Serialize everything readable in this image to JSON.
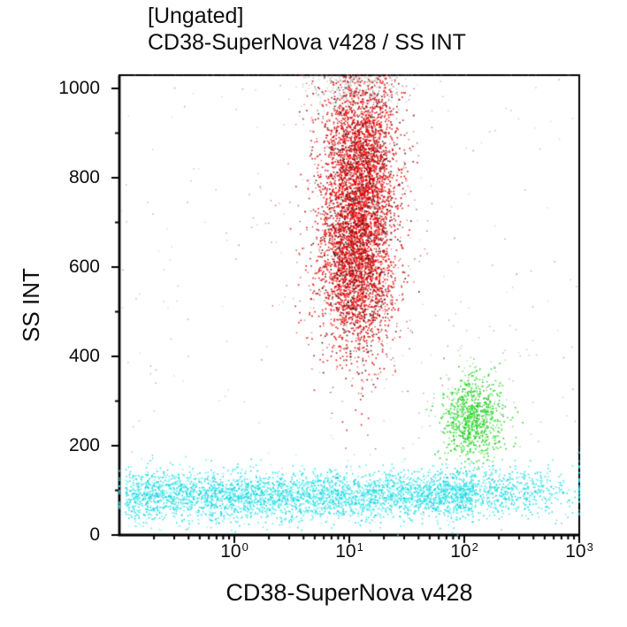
{
  "chart_data": {
    "type": "scatter",
    "subtype": "flow-cytometry-dot-plot",
    "gate": "[Ungated]",
    "title": "CD38-SuperNova v428 / SS INT",
    "xlabel": "CD38-SuperNova v428",
    "ylabel": "SS INT",
    "frame_color": "#000000",
    "background": "#ffffff",
    "x_axis": {
      "scale": "log10",
      "range": [
        0.1,
        1000
      ],
      "ticks": [
        {
          "base": "10",
          "exp": "0",
          "value": 1
        },
        {
          "base": "10",
          "exp": "1",
          "value": 10
        },
        {
          "base": "10",
          "exp": "2",
          "value": 100
        },
        {
          "base": "10",
          "exp": "3",
          "value": 1000
        }
      ]
    },
    "y_axis": {
      "scale": "linear",
      "range": [
        0,
        1000
      ],
      "minor_step": 100,
      "ticks": [
        {
          "label": "0",
          "value": 0
        },
        {
          "label": "200",
          "value": 200
        },
        {
          "label": "400",
          "value": 400
        },
        {
          "label": "600",
          "value": 600
        },
        {
          "label": "800",
          "value": 800
        },
        {
          "label": "1000",
          "value": 1000
        }
      ]
    },
    "populations": [
      {
        "name": "debris-scatter-gray",
        "count": 230,
        "x": {
          "dist": "uniform_log",
          "lo": -1.0,
          "hi": 3.0
        },
        "y": {
          "dist": "uniform",
          "lo": 5,
          "hi": 1020
        },
        "colors": [
          "#bdbdbd",
          "#ababab",
          "#cfcfcf",
          "#919191"
        ],
        "size": 1.5,
        "alpha": 0.75
      },
      {
        "name": "top-edge-smudge-gray",
        "count": 520,
        "x": {
          "dist": "lognormal",
          "mu": 1.07,
          "sigma": 0.21
        },
        "y": {
          "dist": "normal",
          "mu": 1025,
          "sigma": 42
        },
        "colors": [
          "#b7b7b7",
          "#c6c6c6",
          "#a3a3a3",
          "#8a8a8a"
        ],
        "size": 1.5,
        "alpha": 0.8
      },
      {
        "name": "lymphocyte-band-cyan",
        "count": 3900,
        "x": {
          "dist": "uniform_log",
          "lo": -0.95,
          "hi": 2.08
        },
        "y": {
          "dist": "normal",
          "mu": 88,
          "sigma": 27
        },
        "colors": [
          "#14dfe6",
          "#00d7e0",
          "#3fe8ee",
          "#00c9d4",
          "#8ff2f5"
        ],
        "size": 1.6,
        "alpha": 0.8
      },
      {
        "name": "band-right-tail-cyan",
        "count": 600,
        "x": {
          "dist": "lognormal",
          "mu": 2.35,
          "sigma": 0.32
        },
        "y": {
          "dist": "normal",
          "mu": 100,
          "sigma": 27
        },
        "colors": [
          "#14dfe6",
          "#00d7e0",
          "#3fe8ee",
          "#00c9d4"
        ],
        "size": 1.6,
        "alpha": 0.8
      },
      {
        "name": "left-edge-pile-cyan",
        "count": 14,
        "x": {
          "dist": "fixed",
          "v": 0.1
        },
        "y": {
          "dist": "normal",
          "mu": 88,
          "sigma": 25
        },
        "colors": [
          "#14dfe6",
          "#00c9d4"
        ],
        "size": 1.8,
        "alpha": 0.9
      },
      {
        "name": "right-edge-pile-cyan",
        "count": 22,
        "x": {
          "dist": "fixed",
          "v": 1000
        },
        "y": {
          "dist": "normal",
          "mu": 110,
          "sigma": 30
        },
        "colors": [
          "#14dfe6",
          "#00c9d4",
          "#1a1a1a"
        ],
        "size": 1.8,
        "alpha": 0.9
      },
      {
        "name": "cd38-positive-green",
        "count": 800,
        "x": {
          "dist": "lognormal",
          "mu": 2.08,
          "sigma": 0.13
        },
        "y": {
          "dist": "normal",
          "mu": 262,
          "sigma": 48
        },
        "colors": [
          "#12d312",
          "#00c800",
          "#35df35",
          "#0bb80b",
          "#5ae95a"
        ],
        "size": 1.6,
        "alpha": 0.85
      },
      {
        "name": "green-halo-specks",
        "count": 90,
        "x": {
          "dist": "lognormal",
          "mu": 2.05,
          "sigma": 0.22
        },
        "y": {
          "dist": "normal",
          "mu": 300,
          "sigma": 90
        },
        "colors": [
          "#9aa39a",
          "#8a8a8a",
          "#79c879"
        ],
        "size": 1.4,
        "alpha": 0.7
      },
      {
        "name": "granulocytes-red-lower",
        "count": 2600,
        "x": {
          "dist": "lognormal",
          "mu": 1.06,
          "sigma": 0.16
        },
        "y": {
          "dist": "normal",
          "mu": 620,
          "sigma": 110
        },
        "colors": [
          "#f50505",
          "#f50505",
          "#f50505",
          "#f50505",
          "#ea0000",
          "#d40000",
          "#b00000",
          "#7c0606",
          "#3a0d0d"
        ],
        "size": 1.7,
        "alpha": 0.85
      },
      {
        "name": "granulocytes-red-upper",
        "count": 2200,
        "x": {
          "dist": "lognormal",
          "mu": 1.1,
          "sigma": 0.16
        },
        "y": {
          "dist": "normal",
          "mu": 845,
          "sigma": 105
        },
        "colors": [
          "#f50505",
          "#f50505",
          "#f50505",
          "#f50505",
          "#ea0000",
          "#d40000",
          "#b00000",
          "#7c0606",
          "#3a0d0d"
        ],
        "size": 1.7,
        "alpha": 0.85
      },
      {
        "name": "red-halo-specks",
        "count": 650,
        "x": {
          "dist": "lognormal",
          "mu": 1.08,
          "sigma": 0.27
        },
        "y": {
          "dist": "normal",
          "mu": 700,
          "sigma": 190
        },
        "colors": [
          "#ef4040",
          "#e22222",
          "#b81818",
          "#6d1111",
          "#c2c2c2"
        ],
        "size": 1.4,
        "alpha": 0.7
      },
      {
        "name": "top-border-pileup-dark",
        "count": 150,
        "x": {
          "dist": "lognormal",
          "mu": 1.05,
          "sigma": 0.35
        },
        "y": {
          "dist": "fixed",
          "v": 1030
        },
        "colors": [
          "#101010",
          "#2a2a2a",
          "#000000"
        ],
        "size": 1.8,
        "alpha": 0.9
      },
      {
        "name": "top-border-pileup-dark-wide",
        "count": 110,
        "x": {
          "dist": "uniform_log",
          "lo": -0.9,
          "hi": 3.0
        },
        "y": {
          "dist": "fixed",
          "v": 1030
        },
        "colors": [
          "#101010",
          "#2a2a2a",
          "#000000"
        ],
        "size": 1.8,
        "alpha": 0.9
      }
    ]
  }
}
